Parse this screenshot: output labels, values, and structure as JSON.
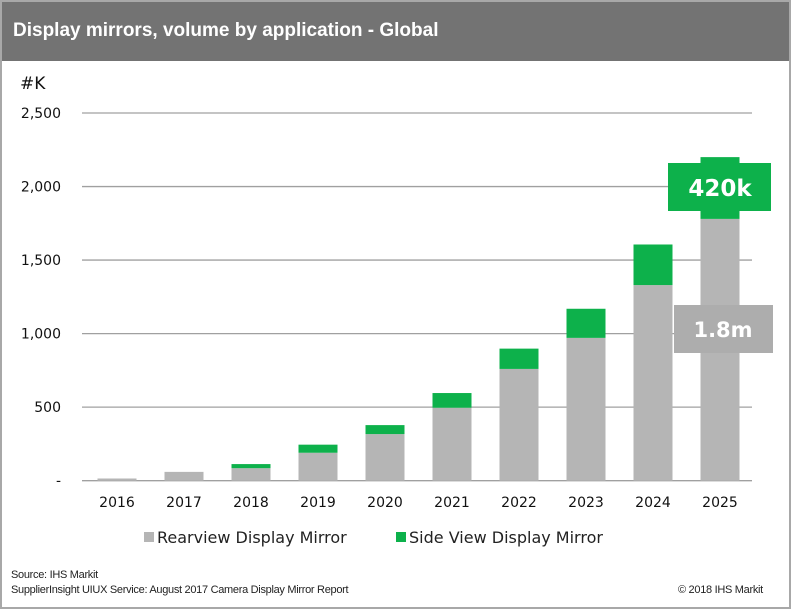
{
  "colors": {
    "header": "#737373",
    "rearview": "#b5b5b5",
    "side": "#0db14b",
    "grid": "#a0a0a0"
  },
  "chart_data": {
    "type": "bar",
    "stacked": true,
    "title": "Display mirrors, volume by application - Global",
    "ylabel": "#K",
    "ylim": [
      0,
      2500
    ],
    "yticks": [
      0,
      500,
      1000,
      1500,
      2000,
      2500
    ],
    "ytick_labels": [
      "-",
      "500",
      "1,000",
      "1,500",
      "2,000",
      "2,500"
    ],
    "grid": true,
    "legend_position": "bottom",
    "categories": [
      "2016",
      "2017",
      "2018",
      "2019",
      "2020",
      "2021",
      "2022",
      "2023",
      "2024",
      "2025"
    ],
    "series": [
      {
        "name": "Rearview Display Mirror",
        "values": [
          15,
          60,
          85,
          190,
          317,
          496,
          760,
          971,
          1330,
          1780
        ]
      },
      {
        "name": "Side View Display Mirror",
        "values": [
          0,
          0,
          28,
          55,
          61,
          100,
          138,
          198,
          276,
          420
        ]
      }
    ],
    "annotations": [
      {
        "text": "420k",
        "series": "Side View Display Mirror",
        "category": "2025"
      },
      {
        "text": "1.8m",
        "series": "Rearview Display Mirror",
        "category": "2025"
      }
    ]
  },
  "footer": {
    "source": "Source: IHS Markit",
    "report": "SupplierInsight UIUX Service: August 2017 Camera Display Mirror Report",
    "copyright": "© 2018  IHS Markit"
  }
}
